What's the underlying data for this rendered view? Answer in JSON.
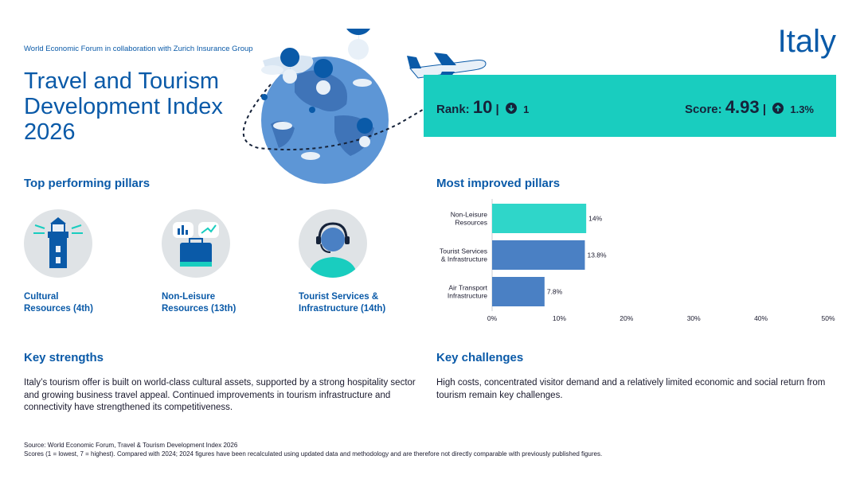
{
  "header": {
    "collab": "World Economic Forum in collaboration with Zurich Insurance Group",
    "title": "Travel and Tourism Development Index 2026",
    "country": "Italy"
  },
  "scorecard": {
    "rank_label": "Rank:",
    "rank_value": "10",
    "rank_sep": "|",
    "rank_change": "1",
    "rank_change_icon": "down-arrow-icon",
    "score_label": "Score:",
    "score_value": "4.93",
    "score_sep": "|",
    "score_change": "1.3%",
    "score_change_icon": "up-arrow-icon",
    "box_color": "#19cdbf"
  },
  "top_pillars": {
    "heading": "Top performing pillars",
    "items": [
      {
        "label_line1": "Cultural",
        "label_line2": "Resources (4th)",
        "icon": "lighthouse-icon"
      },
      {
        "label_line1": "Non-Leisure",
        "label_line2": "Resources (13th)",
        "icon": "briefcase-icon"
      },
      {
        "label_line1": "Tourist Services &",
        "label_line2": "Infrastructure (14th)",
        "icon": "support-agent-icon"
      }
    ]
  },
  "improved": {
    "heading": "Most improved pillars"
  },
  "chart_data": {
    "type": "bar",
    "orientation": "horizontal",
    "categories": [
      [
        "Non-Leisure",
        "Resources"
      ],
      [
        "Tourist Services",
        "& Infrastructure"
      ],
      [
        "Air Transport",
        "Infrastructure"
      ]
    ],
    "values": [
      14,
      13.8,
      7.8
    ],
    "value_labels": [
      "14%",
      "13.8%",
      "7.8%"
    ],
    "colors": [
      "#2fd6c9",
      "#4a80c4",
      "#4a80c4"
    ],
    "xlim": [
      0,
      50
    ],
    "ticks": [
      "0%",
      "10%",
      "20%",
      "30%",
      "40%",
      "50%"
    ],
    "grid": false
  },
  "strengths": {
    "heading": "Key strengths",
    "text": "Italy’s tourism offer is built on world-class cultural assets, supported by a strong hospitality sector and growing business travel appeal. Continued improvements in tourism infrastructure and connectivity have strengthened its competitiveness."
  },
  "challenges": {
    "heading": "Key challenges",
    "text": "High costs, concentrated visitor demand and a relatively limited economic and social return from tourism remain key challenges."
  },
  "footer": {
    "source": "Source: World Economic Forum, Travel & Tourism Development Index 2026",
    "note": "Scores (1 = lowest, 7 = highest). Compared with 2024; 2024 figures have been recalculated using updated data and methodology and are therefore not directly comparable with previously published figures."
  }
}
